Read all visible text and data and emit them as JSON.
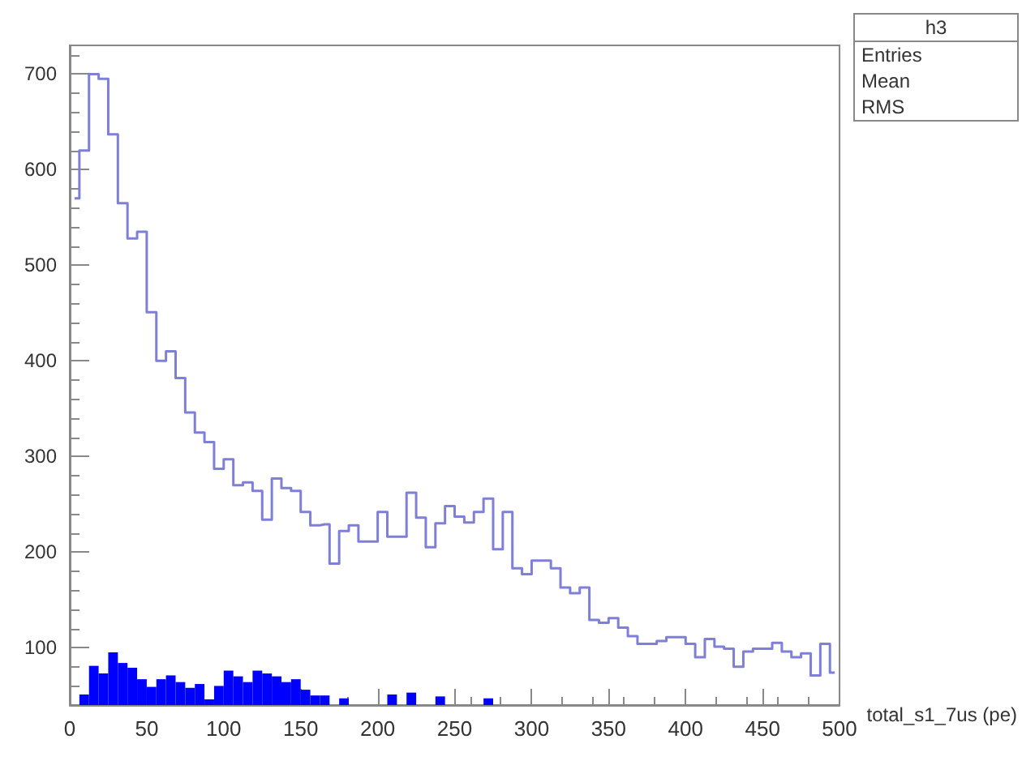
{
  "chart_data": {
    "type": "step",
    "xlabel": "total_s1_7us (pe)",
    "annotations": [
      "h3",
      "Entries",
      "Mean",
      "RMS"
    ],
    "x": [
      3.125,
      9.375,
      15.625,
      21.875,
      28.125,
      34.375,
      40.625,
      46.875,
      53.125,
      59.375,
      65.625,
      71.875,
      78.125,
      84.375,
      90.625,
      96.875,
      103.125,
      109.375,
      115.625,
      121.875,
      128.125,
      134.375,
      140.625,
      146.875,
      153.125,
      159.375,
      165.625,
      171.875,
      178.125,
      184.375,
      190.625,
      196.875,
      203.125,
      209.375,
      215.625,
      221.875,
      228.125,
      234.375,
      240.625,
      246.875,
      253.125,
      259.375,
      265.625,
      271.875,
      278.125,
      284.375,
      290.625,
      296.875,
      303.125,
      309.375,
      315.625,
      321.875,
      328.125,
      334.375,
      340.625,
      346.875,
      353.125,
      359.375,
      365.625,
      371.875,
      378.125,
      384.375,
      390.625,
      396.875,
      403.125,
      409.375,
      415.625,
      421.875,
      428.125,
      434.375,
      440.625,
      446.875,
      453.125,
      459.375,
      465.625,
      471.875,
      478.125,
      484.375,
      490.625,
      496.875
    ],
    "series": [
      {
        "color": "#7f7fd8",
        "values": [
          570,
          620,
          700,
          695,
          637,
          565,
          528,
          535,
          451,
          400,
          410,
          382,
          346,
          325,
          315,
          287,
          297,
          270,
          273,
          264,
          234,
          277,
          267,
          264,
          242,
          228,
          229,
          188,
          222,
          228,
          211,
          211,
          242,
          216,
          216,
          262,
          236,
          205,
          230,
          248,
          237,
          231,
          242,
          256,
          203,
          242,
          183,
          177,
          191,
          191,
          183,
          163,
          157,
          163,
          129,
          126,
          131,
          121,
          112,
          104,
          104,
          107,
          111,
          111,
          104,
          90,
          109,
          101,
          99,
          80,
          96,
          99,
          99,
          105,
          96,
          90,
          94,
          71,
          104,
          74
        ]
      },
      {
        "type": "bar",
        "color": "#0000ff",
        "values": [
          null,
          51,
          81,
          73,
          95,
          84,
          79,
          67,
          59,
          67,
          71,
          64,
          58,
          62,
          46,
          60,
          76,
          70,
          64,
          76,
          73,
          70,
          64,
          67,
          56,
          50,
          50,
          null,
          47,
          null,
          null,
          null,
          null,
          51,
          null,
          53,
          null,
          null,
          49,
          null,
          null,
          null,
          null,
          47,
          null,
          null,
          null,
          null,
          null,
          null,
          null,
          null,
          null,
          null,
          null,
          null,
          null,
          null,
          null,
          null,
          null,
          null,
          null,
          null,
          null,
          null,
          null,
          null,
          null,
          null,
          null,
          null,
          null,
          null,
          null,
          null,
          null,
          null,
          null,
          null
        ]
      }
    ],
    "xlim": [
      0,
      500
    ],
    "xticks": [
      0,
      50,
      100,
      150,
      200,
      250,
      300,
      350,
      400,
      450,
      500
    ],
    "ylim": [
      40,
      730
    ],
    "yticks": [
      100,
      200,
      300,
      400,
      500,
      600,
      700
    ],
    "grid": false
  }
}
